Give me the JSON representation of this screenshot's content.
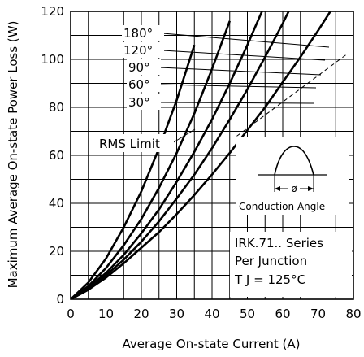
{
  "chart_data": {
    "type": "line",
    "xlabel": "Average On-state Current (A)",
    "ylabel": "Maximum Average On-state Power Loss (W)",
    "xlim": [
      0,
      80
    ],
    "ylim": [
      0,
      120
    ],
    "x_ticks": [
      "0",
      "10",
      "20",
      "30",
      "40",
      "50",
      "60",
      "70",
      "80"
    ],
    "y_ticks": [
      "0",
      "20",
      "40",
      "60",
      "80",
      "100",
      "120"
    ],
    "grid": true,
    "series": [
      {
        "name": "180°",
        "x": [
          0,
          5,
          10,
          15,
          20,
          25,
          30,
          35,
          40,
          45,
          50,
          55,
          60,
          65,
          70,
          75,
          80
        ],
        "y": [
          0,
          4,
          9,
          15,
          21.5,
          28,
          35.5,
          43.5,
          52,
          61,
          70.5,
          80,
          90.5,
          101,
          112,
          123.5,
          135
        ]
      },
      {
        "name": "120°",
        "x": [
          0,
          5,
          10,
          15,
          20,
          25,
          30,
          35,
          40,
          45,
          50,
          55,
          60,
          65
        ],
        "y": [
          0,
          4,
          10,
          16.5,
          24,
          32.5,
          42,
          52,
          63,
          75,
          87.5,
          101,
          115,
          130
        ]
      },
      {
        "name": "90°",
        "x": [
          0,
          5,
          10,
          15,
          20,
          25,
          30,
          35,
          40,
          45,
          50,
          55
        ],
        "y": [
          0,
          5,
          11,
          18.5,
          27.5,
          37.5,
          49,
          61.5,
          75,
          90,
          106,
          123
        ]
      },
      {
        "name": "60°",
        "x": [
          0,
          5,
          10,
          15,
          20,
          25,
          30,
          35,
          40,
          45
        ],
        "y": [
          0,
          5.5,
          13,
          22.5,
          33.5,
          46.5,
          61,
          77.5,
          96,
          116
        ]
      },
      {
        "name": "30°",
        "x": [
          0,
          5,
          10,
          15,
          20,
          25,
          30,
          35
        ],
        "y": [
          0,
          7,
          17,
          30,
          45,
          63,
          83,
          106
        ]
      }
    ],
    "series_labels": [
      "180°",
      "120°",
      "90°",
      "60°",
      "30°"
    ],
    "rms_limit_label": "RMS Limit",
    "rms_limit_line": {
      "x": [
        47,
        78
      ],
      "y": [
        68,
        102
      ]
    },
    "inset_label": "Conduction Angle",
    "inset_symbol": "ø",
    "notes": [
      "IRK.71.. Series",
      "Per Junction",
      "T J = 125°C"
    ]
  }
}
